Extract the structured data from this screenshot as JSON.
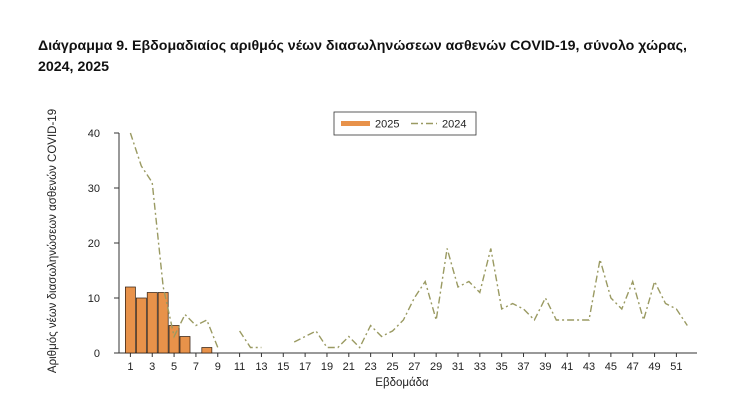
{
  "page": {
    "title_line1": "Διάγραμμα 9. Εβδομαδιαίος αριθμός νέων διασωληνώσεων ασθενών COVID-19, σύνολο χώρας,",
    "title_line2": "2024, 2025"
  },
  "chart_data": {
    "type": "bar",
    "title": "Διάγραμμα 9. Εβδομαδιαίος αριθμός νέων διασωληνώσεων ασθενών COVID-19, σύνολο χώρας, 2024, 2025",
    "xlabel": "Εβδομάδα",
    "ylabel": "Αριθμός νέων διασωληνώσεων ασθενών COVID-19",
    "ylim": [
      0,
      40
    ],
    "y_ticks": [
      0,
      10,
      20,
      30,
      40
    ],
    "x_ticks": [
      1,
      3,
      5,
      7,
      9,
      11,
      13,
      15,
      17,
      19,
      21,
      23,
      25,
      27,
      29,
      31,
      33,
      35,
      37,
      39,
      41,
      43,
      45,
      47,
      49,
      51
    ],
    "weeks_range": [
      1,
      52
    ],
    "legend_position": "top-center",
    "series": [
      {
        "name": "2025",
        "type": "bar",
        "color": "#E8924A",
        "weeks": [
          1,
          2,
          3,
          4,
          5,
          6,
          7,
          8
        ],
        "values": [
          12,
          10,
          11,
          11,
          5,
          3,
          0,
          1
        ]
      },
      {
        "name": "2024",
        "type": "line",
        "style": "dash-dot",
        "color": "#9A9A62",
        "weeks": [
          1,
          2,
          3,
          4,
          5,
          6,
          7,
          8,
          9,
          10,
          11,
          12,
          13,
          14,
          15,
          16,
          17,
          18,
          19,
          20,
          21,
          22,
          23,
          24,
          25,
          26,
          27,
          28,
          29,
          30,
          31,
          32,
          33,
          34,
          35,
          36,
          37,
          38,
          39,
          40,
          41,
          42,
          43,
          44,
          45,
          46,
          47,
          48,
          49,
          50,
          51,
          52
        ],
        "values": [
          40,
          34,
          31,
          12,
          3,
          7,
          5,
          6,
          1,
          null,
          4,
          1,
          1,
          null,
          null,
          2,
          3,
          4,
          1,
          1,
          3,
          1,
          5,
          3,
          4,
          6,
          10,
          13,
          6,
          19,
          12,
          13,
          11,
          19,
          8,
          9,
          8,
          6,
          10,
          6,
          6,
          6,
          6,
          17,
          10,
          8,
          13,
          6,
          13,
          9,
          8,
          5
        ]
      }
    ]
  }
}
